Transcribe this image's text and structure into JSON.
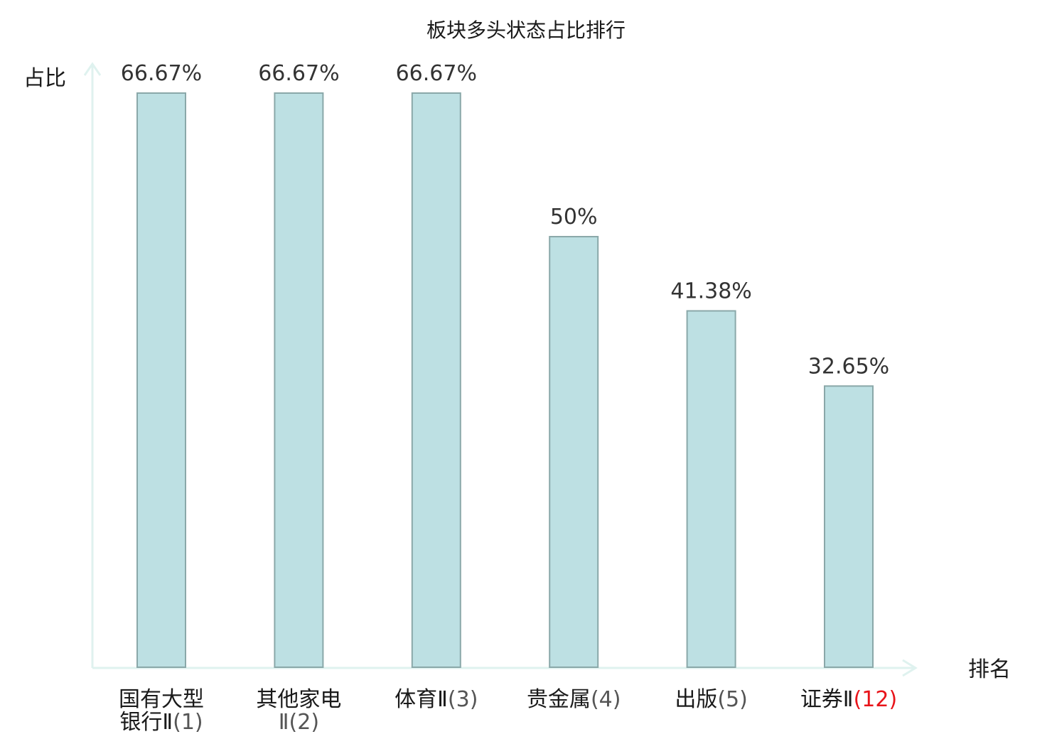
{
  "chart_data": {
    "type": "bar",
    "title": "板块多头状态占比排行",
    "ylabel": "占比",
    "xlabel": "排名",
    "ylim": [
      0,
      70
    ],
    "grid": false,
    "categories": [
      {
        "name_lines": [
          "国有大型",
          "银行Ⅱ"
        ],
        "rank": "(1)"
      },
      {
        "name_lines": [
          "其他家电"
        ],
        "rank_lines": [
          "Ⅱ(2)"
        ]
      },
      {
        "name_lines": [
          "体育Ⅱ"
        ],
        "rank": "(3)"
      },
      {
        "name_lines": [
          "贵金属"
        ],
        "rank": "(4)"
      },
      {
        "name_lines": [
          "出版"
        ],
        "rank": "(5)"
      },
      {
        "name_lines": [
          "证券Ⅱ"
        ],
        "rank": "(12)",
        "highlight": true
      }
    ],
    "values": [
      66.67,
      66.67,
      66.67,
      50,
      41.38,
      32.65
    ],
    "value_labels": [
      "66.67%",
      "66.67%",
      "66.67%",
      "50%",
      "41.38%",
      "32.65%"
    ],
    "colors": {
      "bar_fill": "#bde0e3",
      "bar_stroke": "#8aa8a9",
      "axis": "#dff2ef",
      "highlight": "#e8141a",
      "text": "#1a1a1a",
      "value_text": "#333333"
    }
  }
}
